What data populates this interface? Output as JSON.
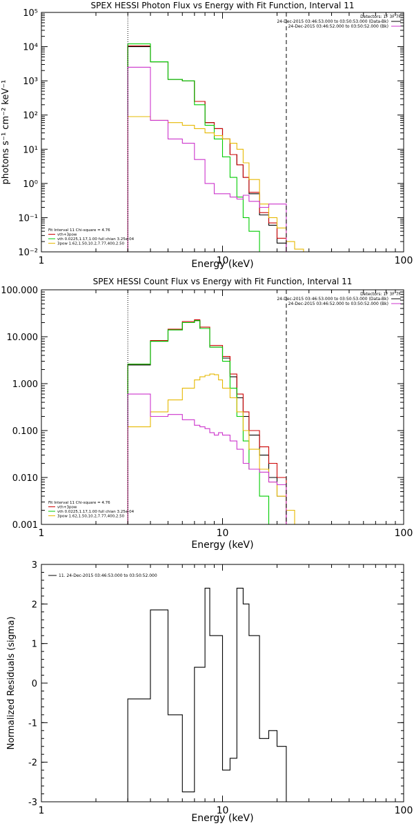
{
  "chart_data": [
    {
      "type": "line",
      "title": "SPEX HESSI Photon Flux vs Energy with Fit Function, Interval 11",
      "xlabel": "Energy (keV)",
      "ylabel": "photons s⁻¹ cm⁻² keV⁻¹",
      "xscale": "log",
      "yscale": "log",
      "xlim": [
        1,
        100
      ],
      "ylim": [
        0.01,
        100000
      ],
      "xticks": [
        "1",
        "10",
        "100"
      ],
      "yticks": [
        "10⁻²",
        "10⁻¹",
        "10⁰",
        "10¹",
        "10²",
        "10³",
        "10⁴",
        "10⁵"
      ],
      "vlines": [
        {
          "x": 3.0,
          "style": "dotted"
        },
        {
          "x": 22.5,
          "style": "dashed"
        }
      ],
      "legend_top_right": [
        {
          "text": "Detectors: 1F 3F 7F",
          "color": null
        },
        {
          "text": "24-Dec-2015 03:46:53.000 to 03:50:53.000 (Data-Bk)",
          "color": "#000000"
        },
        {
          "text": "24-Dec-2015 03:46:52.000 to 03:50:52.000 (Bk)",
          "color": "#cc33cc"
        }
      ],
      "legend_bottom_left": [
        {
          "text": "Fit Interval 11    Chi-square = 4.76",
          "color": null
        },
        {
          "text": "vth+3pow",
          "color": "#cc0000"
        },
        {
          "text": "vth 0.0225,1.17,1.00  full chian 3.25e-04",
          "color": "#00cc00"
        },
        {
          "text": "3pow 1.62,1.50,10.2,7.77,400,2.50",
          "color": "#e6b800"
        }
      ],
      "bin_edges": [
        3.0,
        3.5,
        4.0,
        5.0,
        6.0,
        7.0,
        8.0,
        9.0,
        10.0,
        11.0,
        12.0,
        13.0,
        14.0,
        16.0,
        18.0,
        20.0,
        22.5,
        25.0,
        28.0
      ],
      "series": [
        {
          "name": "Data-Bk",
          "color": "#000000",
          "values": [
            10000,
            10000,
            3600,
            1100,
            1000,
            250,
            60,
            40,
            20,
            7,
            3.5,
            1.5,
            0.5,
            0.12,
            0.06,
            0.018,
            null,
            null
          ]
        },
        {
          "name": "vth+3pow",
          "color": "#cc0000",
          "values": [
            10500,
            10500,
            3600,
            1100,
            1000,
            250,
            60,
            40,
            20,
            7,
            3.5,
            1.5,
            0.55,
            0.14,
            0.07,
            0.025,
            null,
            null
          ]
        },
        {
          "name": "vth",
          "color": "#00cc00",
          "values": [
            12000,
            12000,
            3600,
            1100,
            1000,
            200,
            50,
            20,
            6,
            1.5,
            0.4,
            0.1,
            0.04,
            0.01,
            null,
            null,
            null,
            null
          ]
        },
        {
          "name": "3pow",
          "color": "#e6b800",
          "values": [
            90,
            90,
            70,
            60,
            50,
            40,
            30,
            25,
            20,
            15,
            10,
            4,
            1.3,
            0.25,
            0.1,
            0.05,
            0.02,
            0.012
          ]
        },
        {
          "name": "Bk",
          "color": "#cc33cc",
          "values": [
            2500,
            2500,
            70,
            20,
            15,
            5,
            1,
            0.5,
            0.5,
            0.4,
            0.35,
            0.45,
            0.3,
            0.2,
            0.25,
            0.25,
            null,
            null
          ]
        }
      ]
    },
    {
      "type": "line",
      "title": "SPEX HESSI Count Flux vs Energy with Fit Function, Interval 11",
      "xlabel": "Energy (keV)",
      "ylabel": "",
      "xscale": "log",
      "yscale": "log",
      "xlim": [
        1,
        100
      ],
      "ylim": [
        0.001,
        100
      ],
      "xticks": [
        "1",
        "10",
        "100"
      ],
      "yticks": [
        "0.001",
        "0.010",
        "0.100",
        "1.000",
        "10.000",
        "100.000"
      ],
      "vlines": [
        {
          "x": 3.0,
          "style": "dotted"
        },
        {
          "x": 22.5,
          "style": "dashed"
        }
      ],
      "legend_top_right": [
        {
          "text": "Detectors: 1F 3F 7F",
          "color": null
        },
        {
          "text": "24-Dec-2015 03:46:53.000 to 03:50:53.000 (Data-Bk)",
          "color": "#000000"
        },
        {
          "text": "24-Dec-2015 03:46:52.000 to 03:50:52.000 (Bk)",
          "color": "#cc33cc"
        }
      ],
      "legend_bottom_left": [
        {
          "text": "Fit Interval 11    Chi-square = 4.76",
          "color": null
        },
        {
          "text": "vth+3pow",
          "color": "#cc0000"
        },
        {
          "text": "vth 0.0225,1.17,1.00  full chian 3.25e-04",
          "color": "#00cc00"
        },
        {
          "text": "3pow 1.62,1.50,10.2,7.77,400,2.50",
          "color": "#e6b800"
        }
      ],
      "bin_edges": [
        3.0,
        3.5,
        4.0,
        4.5,
        5.0,
        5.5,
        6.0,
        6.5,
        7.0,
        7.5,
        8.0,
        8.5,
        9.0,
        9.5,
        10.0,
        11.0,
        12.0,
        13.0,
        14.0,
        16.0,
        18.0,
        20.0,
        22.5,
        25.0,
        28.0
      ],
      "series": [
        {
          "name": "Data-Bk",
          "color": "#000000",
          "values": [
            2.5,
            2.5,
            8,
            8,
            14,
            14,
            20,
            20,
            22,
            15,
            15,
            6,
            6,
            6,
            3.5,
            1.4,
            0.5,
            0.2,
            0.08,
            0.03,
            0.01,
            0.004,
            null,
            null
          ]
        },
        {
          "name": "vth+3pow",
          "color": "#cc0000",
          "values": [
            2.6,
            2.6,
            8.3,
            8.3,
            14.5,
            14.5,
            21,
            21,
            23,
            16,
            16,
            6.5,
            6.5,
            6.5,
            3.8,
            1.6,
            0.6,
            0.25,
            0.1,
            0.045,
            0.02,
            0.01,
            null,
            null
          ]
        },
        {
          "name": "vth",
          "color": "#00cc00",
          "values": [
            2.6,
            2.6,
            8,
            8,
            14,
            14,
            20,
            20,
            22,
            15,
            15,
            6,
            6,
            6,
            3,
            0.8,
            0.2,
            0.06,
            0.015,
            0.004,
            0.001,
            null,
            null,
            null
          ]
        },
        {
          "name": "3pow",
          "color": "#e6b800",
          "values": [
            0.12,
            0.12,
            0.25,
            0.25,
            0.45,
            0.45,
            0.8,
            0.8,
            1.2,
            1.4,
            1.5,
            1.6,
            1.55,
            1.2,
            0.8,
            0.5,
            0.25,
            0.1,
            0.04,
            0.015,
            0.008,
            0.004,
            0.002,
            0.001
          ]
        },
        {
          "name": "Bk",
          "color": "#cc33cc",
          "values": [
            0.6,
            0.6,
            0.2,
            0.2,
            0.22,
            0.22,
            0.17,
            0.17,
            0.13,
            0.12,
            0.11,
            0.09,
            0.08,
            0.09,
            0.08,
            0.06,
            0.04,
            0.02,
            0.015,
            0.013,
            0.008,
            0.007,
            null,
            null
          ]
        }
      ]
    },
    {
      "type": "line",
      "title": "",
      "xlabel": "Energy (keV)",
      "ylabel": "Normalized Residuals (sigma)",
      "xscale": "log",
      "yscale": "linear",
      "xlim": [
        1,
        100
      ],
      "ylim": [
        -3,
        3
      ],
      "xticks": [
        "1",
        "10",
        "100"
      ],
      "yticks": [
        "-3",
        "-2",
        "-1",
        "0",
        "1",
        "2",
        "3"
      ],
      "legend_top_left": [
        {
          "text": "11. 24-Dec-2015 03:46:53.000 to 03:50:52.000",
          "color": "#000000"
        }
      ],
      "bin_edges": [
        3.0,
        3.5,
        4.0,
        4.5,
        5.0,
        5.5,
        6.0,
        6.5,
        7.0,
        7.5,
        8.0,
        8.5,
        9.0,
        9.5,
        10.0,
        11.0,
        12.0,
        13.0,
        14.0,
        16.0,
        18.0,
        20.0,
        22.5
      ],
      "series": [
        {
          "name": "",
          "color": "#000000",
          "values": [
            -0.4,
            -0.4,
            1.85,
            1.85,
            -0.8,
            -0.8,
            -2.75,
            -2.75,
            0.4,
            0.4,
            2.4,
            1.2,
            1.2,
            1.2,
            -2.2,
            -1.9,
            2.4,
            2.0,
            1.2,
            -1.4,
            -1.2,
            -1.6
          ]
        }
      ]
    }
  ]
}
